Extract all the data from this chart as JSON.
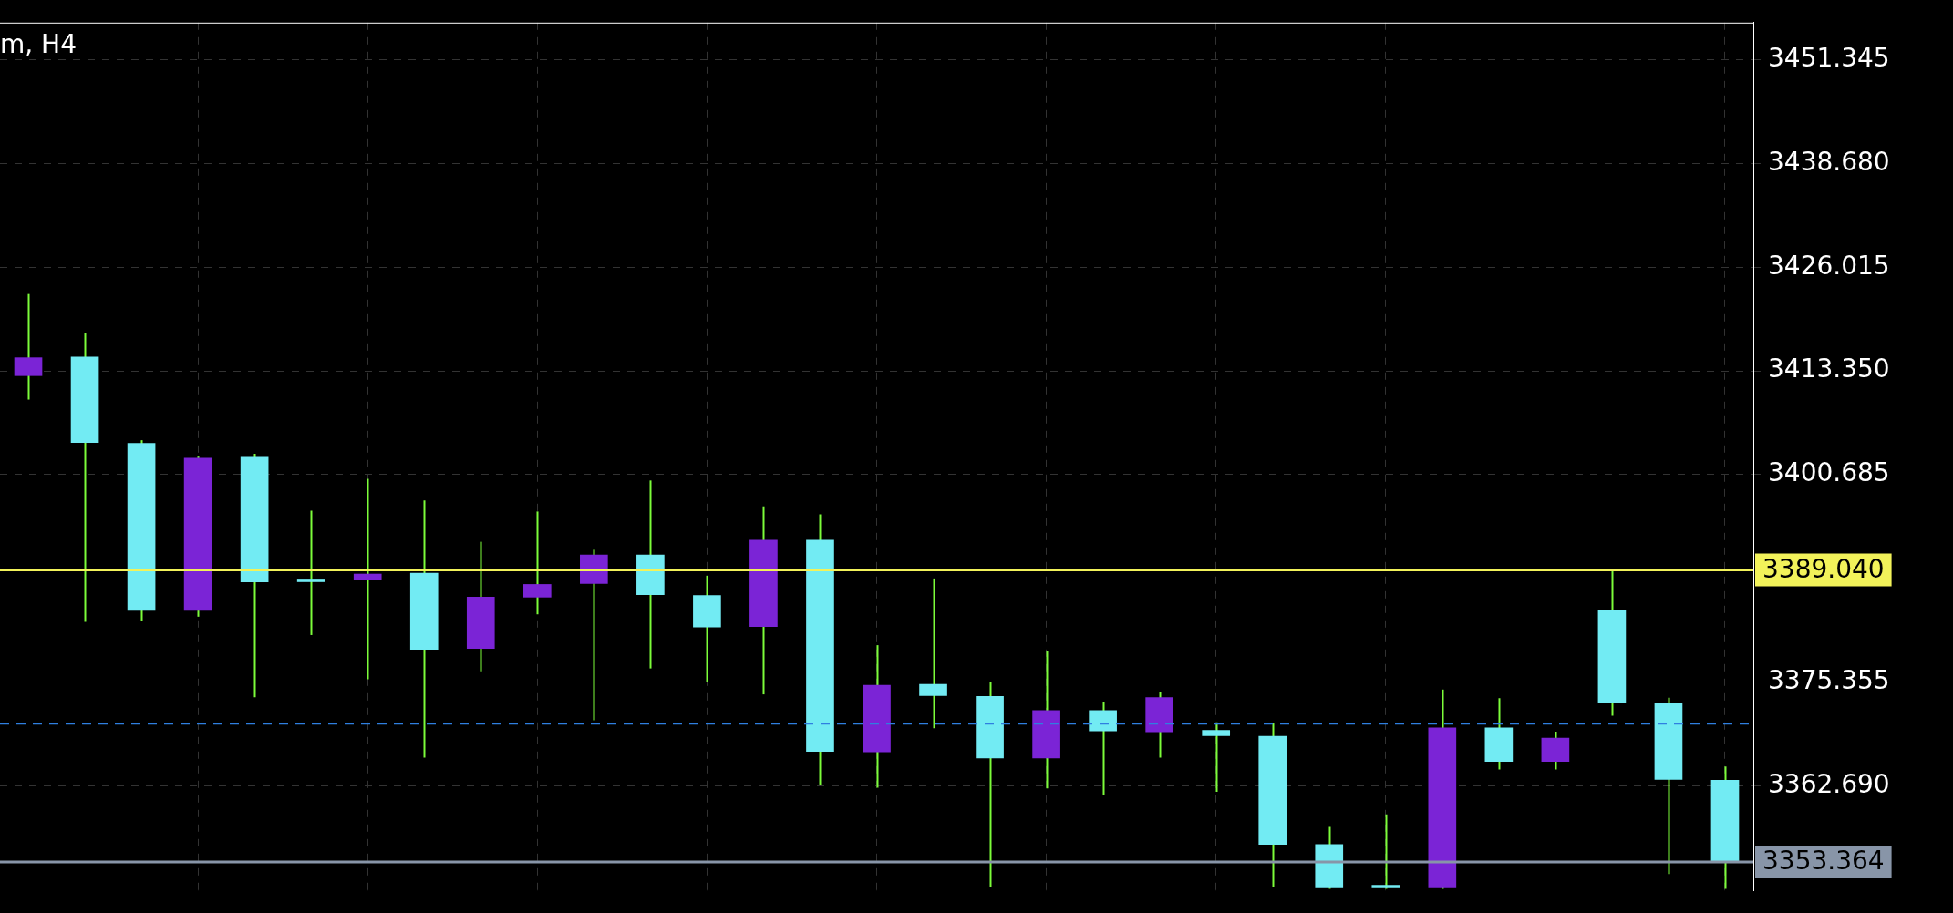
{
  "chart_data": {
    "type": "candlestick",
    "title": "m, H4",
    "categories": [
      null,
      null,
      null,
      null,
      null,
      null,
      null,
      null,
      null,
      null,
      null,
      null,
      null,
      null,
      null,
      null,
      null,
      null,
      null,
      null,
      null,
      null,
      null,
      null,
      null,
      null,
      null,
      null,
      null,
      null,
      null
    ],
    "ohlc": [
      [
        3412.77,
        3422.75,
        3409.85,
        3414.96
      ],
      [
        3415.06,
        3418.03,
        3382.7,
        3404.6
      ],
      [
        3404.5,
        3404.89,
        3382.85,
        3384.11
      ],
      [
        3384.11,
        3402.89,
        3383.33,
        3402.7
      ],
      [
        3402.8,
        3403.23,
        3373.5,
        3387.57
      ],
      [
        3387.7,
        3396.28,
        3381.09,
        3387.6
      ],
      [
        3387.81,
        3400.17,
        3375.69,
        3388.54
      ],
      [
        3388.64,
        3397.54,
        3366.11,
        3379.34
      ],
      [
        3379.44,
        3392.48,
        3376.66,
        3385.72
      ],
      [
        3385.72,
        3396.18,
        3383.62,
        3387.27
      ],
      [
        3387.37,
        3391.51,
        3370.68,
        3390.87
      ],
      [
        3390.87,
        3399.97,
        3377.01,
        3386.01
      ],
      [
        3385.91,
        3388.34,
        3375.4,
        3382.07
      ],
      [
        3382.12,
        3396.81,
        3373.84,
        3392.67
      ],
      [
        3392.67,
        3395.84,
        3362.8,
        3366.88
      ],
      [
        3366.81,
        3379.85,
        3362.45,
        3374.96
      ],
      [
        3375.07,
        3388.0,
        3369.7,
        3373.7
      ],
      [
        3373.59,
        3375.33,
        3350.3,
        3366.08
      ],
      [
        3366.08,
        3379.11,
        3362.35,
        3371.86
      ],
      [
        3371.86,
        3372.96,
        3361.51,
        3369.39
      ],
      [
        3369.28,
        3374.12,
        3366.13,
        3373.44
      ],
      [
        3369.44,
        3370.44,
        3361.93,
        3368.81
      ],
      [
        3368.71,
        3370.28,
        3350.3,
        3355.52
      ],
      [
        3355.52,
        3357.67,
        3350.1,
        3350.2
      ],
      [
        3350.2,
        3359.2,
        3350.1,
        3350.2
      ],
      [
        3350.2,
        3374.43,
        3350.1,
        3369.76
      ],
      [
        3369.76,
        3373.38,
        3364.66,
        3365.66
      ],
      [
        3365.66,
        3369.28,
        3364.66,
        3368.5
      ],
      [
        3384.16,
        3388.99,
        3371.23,
        3372.81
      ],
      [
        3372.7,
        3373.44,
        3351.89,
        3363.45
      ],
      [
        3363.35,
        3365.03,
        3350.1,
        3353.364
      ]
    ],
    "colors": [
      "#7b24d6",
      "#72ebf3",
      "#72ebf3",
      "#7b24d6",
      "#72ebf3",
      "#72ebf3",
      "#7b24d6",
      "#72ebf3",
      "#7b24d6",
      "#7b24d6",
      "#7b24d6",
      "#72ebf3",
      "#72ebf3",
      "#7b24d6",
      "#72ebf3",
      "#7b24d6",
      "#72ebf3",
      "#72ebf3",
      "#7b24d6",
      "#72ebf3",
      "#7b24d6",
      "#72ebf3",
      "#72ebf3",
      "#72ebf3",
      "#72ebf3",
      "#7b24d6",
      "#72ebf3",
      "#7b24d6",
      "#72ebf3",
      "#72ebf3",
      "#72ebf3"
    ],
    "color": "#7cfc3a",
    "ylim": [
      3349.9,
      3455.9
    ],
    "yticks": [
      {
        "value": 3362.69,
        "label": "3362.690"
      },
      {
        "value": 3375.355,
        "label": "3375.355"
      },
      {
        "value": 3400.685,
        "label": "3400.685"
      },
      {
        "value": 3413.35,
        "label": "3413.350"
      },
      {
        "value": 3426.015,
        "label": "3426.015"
      },
      {
        "value": 3438.68,
        "label": "3438.680"
      },
      {
        "value": 3451.345,
        "label": "3451.345"
      }
    ],
    "tick_labels": "y",
    "grid": true,
    "ref_lines": [
      {
        "axis": "y",
        "value": 3389.04,
        "label": "3389.040",
        "color": "#f2f25a"
      },
      {
        "axis": "y",
        "value": 3370.25,
        "color": "#2f7fe0",
        "line_style": "dashed"
      },
      {
        "axis": "y",
        "value": 3353.364,
        "label": "3353.364",
        "color": "#8895a8"
      }
    ]
  }
}
